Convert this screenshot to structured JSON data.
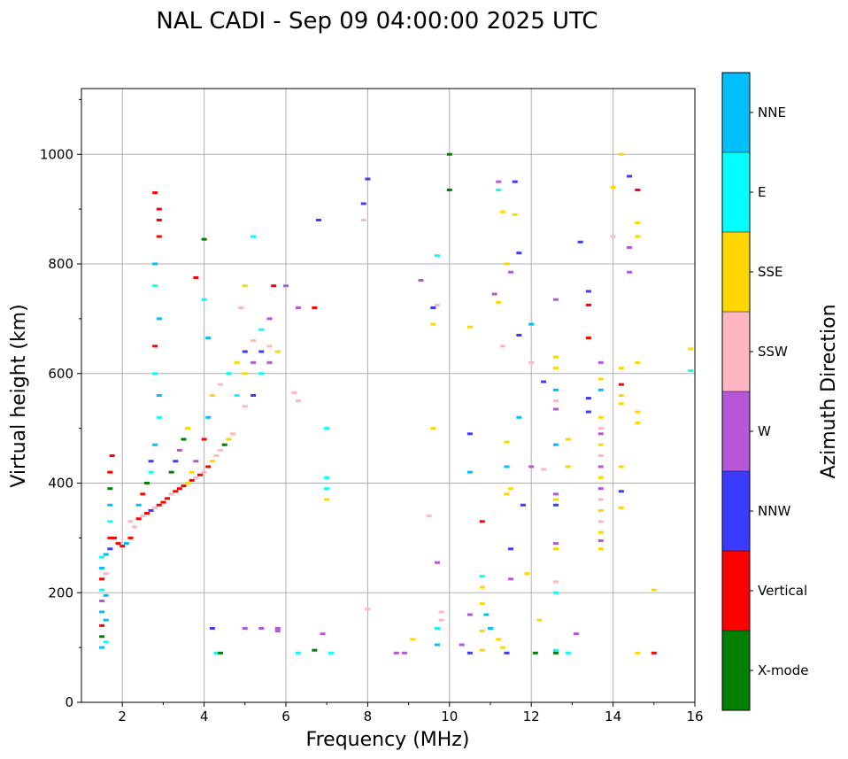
{
  "chart_data": {
    "type": "scatter",
    "title": "NAL CADI - Sep 09 04:00:00 2025 UTC",
    "xlabel": "Frequency (MHz)",
    "ylabel": "Virtual height (km)",
    "xlim": [
      1,
      16
    ],
    "ylim": [
      0,
      1120
    ],
    "xticks": [
      2,
      4,
      6,
      8,
      10,
      12,
      14,
      16
    ],
    "yticks": [
      0,
      200,
      400,
      600,
      800,
      1000
    ],
    "grid": true,
    "colorbar": {
      "label": "Azimuth Direction",
      "categories": [
        {
          "name": "X-mode",
          "color": "#008000"
        },
        {
          "name": "Vertical",
          "color": "#ff0000"
        },
        {
          "name": "NNW",
          "color": "#3b3bff"
        },
        {
          "name": "W",
          "color": "#b557d6"
        },
        {
          "name": "SSW",
          "color": "#ffb6c1"
        },
        {
          "name": "SSE",
          "color": "#ffd700"
        },
        {
          "name": "E",
          "color": "#00ffff"
        },
        {
          "name": "NNE",
          "color": "#00bfff"
        }
      ]
    },
    "echoes": [
      [
        1.5,
        100,
        "NNE"
      ],
      [
        1.5,
        120,
        "X-mode"
      ],
      [
        1.5,
        140,
        "Vertical"
      ],
      [
        1.5,
        165,
        "NNE"
      ],
      [
        1.5,
        185,
        "W"
      ],
      [
        1.5,
        205,
        "E"
      ],
      [
        1.5,
        225,
        "Vertical"
      ],
      [
        1.5,
        245,
        "NNE"
      ],
      [
        1.5,
        265,
        "E"
      ],
      [
        1.6,
        110,
        "E"
      ],
      [
        1.6,
        150,
        "NNE"
      ],
      [
        1.6,
        195,
        "NNE"
      ],
      [
        1.6,
        235,
        "SSW"
      ],
      [
        1.6,
        270,
        "NNE"
      ],
      [
        1.7,
        280,
        "NNW"
      ],
      [
        1.7,
        300,
        "Vertical"
      ],
      [
        1.7,
        330,
        "E"
      ],
      [
        1.7,
        360,
        "NNE"
      ],
      [
        1.7,
        390,
        "X-mode"
      ],
      [
        1.7,
        420,
        "Vertical"
      ],
      [
        1.75,
        450,
        "Vertical"
      ],
      [
        1.8,
        300,
        "Vertical"
      ],
      [
        1.9,
        290,
        "Vertical"
      ],
      [
        2.0,
        285,
        "Vertical"
      ],
      [
        2.1,
        290,
        "NNE"
      ],
      [
        2.2,
        300,
        "Vertical"
      ],
      [
        2.3,
        320,
        "SSW"
      ],
      [
        2.4,
        335,
        "Vertical"
      ],
      [
        2.5,
        340,
        "SSW"
      ],
      [
        2.6,
        345,
        "Vertical"
      ],
      [
        2.7,
        350,
        "NNW"
      ],
      [
        2.8,
        355,
        "SSW"
      ],
      [
        2.9,
        360,
        "Vertical"
      ],
      [
        3.0,
        365,
        "Vertical"
      ],
      [
        3.1,
        372,
        "Vertical"
      ],
      [
        3.2,
        380,
        "SSW"
      ],
      [
        3.3,
        385,
        "Vertical"
      ],
      [
        3.4,
        390,
        "Vertical"
      ],
      [
        3.5,
        395,
        "Vertical"
      ],
      [
        3.6,
        400,
        "SSE"
      ],
      [
        3.7,
        405,
        "Vertical"
      ],
      [
        3.8,
        410,
        "SSW"
      ],
      [
        3.9,
        415,
        "Vertical"
      ],
      [
        4.0,
        420,
        "SSW"
      ],
      [
        4.1,
        430,
        "Vertical"
      ],
      [
        4.2,
        440,
        "SSE"
      ],
      [
        4.3,
        450,
        "SSW"
      ],
      [
        4.4,
        460,
        "SSW"
      ],
      [
        4.5,
        470,
        "X-mode"
      ],
      [
        4.6,
        480,
        "SSE"
      ],
      [
        4.7,
        490,
        "SSW"
      ],
      [
        2.2,
        330,
        "SSW"
      ],
      [
        2.4,
        360,
        "NNE"
      ],
      [
        2.5,
        380,
        "Vertical"
      ],
      [
        2.6,
        400,
        "X-mode"
      ],
      [
        2.7,
        420,
        "E"
      ],
      [
        2.7,
        440,
        "NNW"
      ],
      [
        2.8,
        470,
        "NNE"
      ],
      [
        2.9,
        520,
        "E"
      ],
      [
        2.9,
        560,
        "NNE"
      ],
      [
        2.8,
        600,
        "E"
      ],
      [
        2.8,
        650,
        "Vertical"
      ],
      [
        2.9,
        700,
        "NNE"
      ],
      [
        2.8,
        760,
        "E"
      ],
      [
        2.8,
        800,
        "NNE"
      ],
      [
        2.9,
        850,
        "Vertical"
      ],
      [
        2.9,
        880,
        "Vertical"
      ],
      [
        2.9,
        900,
        "Vertical"
      ],
      [
        2.8,
        930,
        "Vertical"
      ],
      [
        3.2,
        420,
        "X-mode"
      ],
      [
        3.3,
        440,
        "NNW"
      ],
      [
        3.4,
        460,
        "W"
      ],
      [
        3.5,
        480,
        "X-mode"
      ],
      [
        3.6,
        500,
        "SSE"
      ],
      [
        3.7,
        420,
        "SSE"
      ],
      [
        3.8,
        440,
        "W"
      ],
      [
        4.0,
        480,
        "Vertical"
      ],
      [
        4.1,
        520,
        "NNE"
      ],
      [
        4.2,
        560,
        "SSE"
      ],
      [
        4.4,
        580,
        "SSW"
      ],
      [
        4.6,
        600,
        "E"
      ],
      [
        4.8,
        620,
        "SSE"
      ],
      [
        5.0,
        640,
        "NNW"
      ],
      [
        5.2,
        660,
        "SSW"
      ],
      [
        5.4,
        680,
        "E"
      ],
      [
        5.6,
        700,
        "W"
      ],
      [
        4.8,
        560,
        "E"
      ],
      [
        5.0,
        540,
        "SSW"
      ],
      [
        5.2,
        560,
        "NNW"
      ],
      [
        5.4,
        600,
        "E"
      ],
      [
        5.6,
        620,
        "W"
      ],
      [
        5.8,
        640,
        "SSE"
      ],
      [
        5.0,
        600,
        "SSE"
      ],
      [
        5.2,
        620,
        "W"
      ],
      [
        5.4,
        640,
        "NNW"
      ],
      [
        5.6,
        650,
        "SSW"
      ],
      [
        4.0,
        845,
        "X-mode"
      ],
      [
        3.8,
        775,
        "Vertical"
      ],
      [
        4.0,
        735,
        "E"
      ],
      [
        4.1,
        665,
        "NNE"
      ],
      [
        4.9,
        720,
        "SSW"
      ],
      [
        5.0,
        760,
        "SSE"
      ],
      [
        5.2,
        850,
        "E"
      ],
      [
        5.7,
        760,
        "Vertical"
      ],
      [
        6.0,
        760,
        "W"
      ],
      [
        6.3,
        720,
        "W"
      ],
      [
        6.7,
        720,
        "Vertical"
      ],
      [
        6.8,
        880,
        "NNW"
      ],
      [
        6.2,
        565,
        "SSW"
      ],
      [
        6.3,
        550,
        "SSW"
      ],
      [
        7.0,
        500,
        "E"
      ],
      [
        7.0,
        410,
        "E"
      ],
      [
        7.0,
        390,
        "E"
      ],
      [
        7.0,
        370,
        "SSE"
      ],
      [
        4.2,
        135,
        "NNW"
      ],
      [
        4.3,
        90,
        "E"
      ],
      [
        4.4,
        90,
        "X-mode"
      ],
      [
        5.0,
        135,
        "W"
      ],
      [
        5.4,
        135,
        "W"
      ],
      [
        5.8,
        135,
        "W"
      ],
      [
        5.8,
        130,
        "W"
      ],
      [
        6.3,
        90,
        "E"
      ],
      [
        6.7,
        95,
        "X-mode"
      ],
      [
        6.9,
        125,
        "W"
      ],
      [
        7.1,
        90,
        "E"
      ],
      [
        8.0,
        955,
        "NNW"
      ],
      [
        7.9,
        910,
        "NNW"
      ],
      [
        7.9,
        880,
        "SSW"
      ],
      [
        8.0,
        170,
        "SSW"
      ],
      [
        8.7,
        90,
        "W"
      ],
      [
        8.9,
        90,
        "W"
      ],
      [
        9.1,
        115,
        "SSE"
      ],
      [
        9.3,
        770,
        "W"
      ],
      [
        9.6,
        690,
        "SSE"
      ],
      [
        9.6,
        720,
        "NNW"
      ],
      [
        9.7,
        725,
        "SSW"
      ],
      [
        9.7,
        815,
        "SSE"
      ],
      [
        9.7,
        815,
        "E"
      ],
      [
        9.6,
        500,
        "SSE"
      ],
      [
        9.5,
        340,
        "SSW"
      ],
      [
        9.7,
        255,
        "W"
      ],
      [
        9.8,
        165,
        "SSW"
      ],
      [
        9.7,
        135,
        "E"
      ],
      [
        9.7,
        105,
        "NNE"
      ],
      [
        9.8,
        150,
        "SSW"
      ],
      [
        10.0,
        1000,
        "X-mode"
      ],
      [
        10.0,
        935,
        "X-mode"
      ],
      [
        10.3,
        105,
        "W"
      ],
      [
        10.5,
        90,
        "NNW"
      ],
      [
        10.5,
        160,
        "W"
      ],
      [
        10.5,
        490,
        "NNW"
      ],
      [
        10.5,
        420,
        "NNE"
      ],
      [
        10.5,
        685,
        "SSE"
      ],
      [
        10.8,
        330,
        "Vertical"
      ],
      [
        10.8,
        230,
        "E"
      ],
      [
        10.8,
        210,
        "SSE"
      ],
      [
        10.8,
        180,
        "SSE"
      ],
      [
        10.8,
        130,
        "SSE"
      ],
      [
        10.8,
        95,
        "SSE"
      ],
      [
        10.9,
        160,
        "NNE"
      ],
      [
        11.0,
        135,
        "NNE"
      ],
      [
        11.2,
        115,
        "SSE"
      ],
      [
        11.3,
        100,
        "SSE"
      ],
      [
        11.4,
        90,
        "NNW"
      ],
      [
        11.2,
        950,
        "W"
      ],
      [
        11.2,
        935,
        "E"
      ],
      [
        11.3,
        895,
        "SSE"
      ],
      [
        11.3,
        650,
        "SSW"
      ],
      [
        11.4,
        800,
        "SSE"
      ],
      [
        11.5,
        785,
        "W"
      ],
      [
        11.6,
        890,
        "SSE"
      ],
      [
        11.6,
        950,
        "NNW"
      ],
      [
        11.1,
        745,
        "W"
      ],
      [
        11.2,
        730,
        "SSE"
      ],
      [
        11.4,
        475,
        "SSE"
      ],
      [
        11.4,
        430,
        "NNE"
      ],
      [
        11.5,
        390,
        "SSE"
      ],
      [
        11.4,
        380,
        "SSE"
      ],
      [
        11.7,
        520,
        "NNE"
      ],
      [
        11.8,
        360,
        "NNW"
      ],
      [
        11.9,
        235,
        "SSE"
      ],
      [
        12.0,
        430,
        "W"
      ],
      [
        12.0,
        620,
        "SSW"
      ],
      [
        12.0,
        690,
        "NNE"
      ],
      [
        11.7,
        670,
        "NNW"
      ],
      [
        11.7,
        820,
        "NNW"
      ],
      [
        11.5,
        280,
        "NNW"
      ],
      [
        11.5,
        225,
        "W"
      ],
      [
        12.1,
        90,
        "X-mode"
      ],
      [
        12.2,
        150,
        "SSE"
      ],
      [
        12.3,
        585,
        "NNW"
      ],
      [
        12.3,
        425,
        "SSW"
      ],
      [
        12.6,
        630,
        "SSE"
      ],
      [
        12.6,
        610,
        "SSE"
      ],
      [
        12.6,
        570,
        "NNE"
      ],
      [
        12.6,
        550,
        "SSW"
      ],
      [
        12.6,
        535,
        "W"
      ],
      [
        12.6,
        470,
        "NNE"
      ],
      [
        12.6,
        380,
        "W"
      ],
      [
        12.6,
        370,
        "SSE"
      ],
      [
        12.6,
        360,
        "NNW"
      ],
      [
        12.6,
        290,
        "W"
      ],
      [
        12.6,
        280,
        "SSE"
      ],
      [
        12.6,
        220,
        "SSW"
      ],
      [
        12.6,
        200,
        "E"
      ],
      [
        12.6,
        95,
        "E"
      ],
      [
        12.6,
        90,
        "X-mode"
      ],
      [
        12.6,
        735,
        "W"
      ],
      [
        12.9,
        480,
        "SSE"
      ],
      [
        12.9,
        430,
        "SSE"
      ],
      [
        12.9,
        90,
        "E"
      ],
      [
        13.1,
        125,
        "W"
      ],
      [
        13.2,
        840,
        "NNW"
      ],
      [
        13.4,
        665,
        "Vertical"
      ],
      [
        13.4,
        555,
        "NNW"
      ],
      [
        13.4,
        530,
        "NNW"
      ],
      [
        13.4,
        750,
        "NNW"
      ],
      [
        13.4,
        725,
        "Vertical"
      ],
      [
        13.7,
        490,
        "W"
      ],
      [
        13.7,
        470,
        "SSE"
      ],
      [
        13.7,
        450,
        "SSW"
      ],
      [
        13.7,
        430,
        "W"
      ],
      [
        13.7,
        410,
        "SSE"
      ],
      [
        13.7,
        390,
        "W"
      ],
      [
        13.7,
        370,
        "SSW"
      ],
      [
        13.7,
        350,
        "SSE"
      ],
      [
        13.7,
        330,
        "SSW"
      ],
      [
        13.7,
        310,
        "SSE"
      ],
      [
        13.7,
        295,
        "W"
      ],
      [
        13.7,
        280,
        "SSE"
      ],
      [
        13.7,
        570,
        "NNE"
      ],
      [
        13.7,
        590,
        "SSE"
      ],
      [
        13.7,
        620,
        "W"
      ],
      [
        13.7,
        520,
        "SSE"
      ],
      [
        13.7,
        500,
        "SSW"
      ],
      [
        14.0,
        940,
        "SSE"
      ],
      [
        14.0,
        850,
        "SSW"
      ],
      [
        14.2,
        1000,
        "SSE"
      ],
      [
        14.2,
        610,
        "SSE"
      ],
      [
        14.2,
        580,
        "Vertical"
      ],
      [
        14.2,
        560,
        "SSE"
      ],
      [
        14.2,
        545,
        "SSE"
      ],
      [
        14.2,
        430,
        "SSE"
      ],
      [
        14.2,
        385,
        "NNW"
      ],
      [
        14.2,
        355,
        "SSE"
      ],
      [
        14.4,
        960,
        "NNW"
      ],
      [
        14.4,
        830,
        "W"
      ],
      [
        14.4,
        785,
        "W"
      ],
      [
        14.6,
        935,
        "Vertical"
      ],
      [
        14.6,
        875,
        "SSE"
      ],
      [
        14.6,
        850,
        "SSE"
      ],
      [
        14.6,
        620,
        "SSE"
      ],
      [
        14.6,
        530,
        "SSE"
      ],
      [
        14.6,
        510,
        "SSE"
      ],
      [
        14.6,
        90,
        "SSE"
      ],
      [
        15.0,
        90,
        "Vertical"
      ],
      [
        15.0,
        205,
        "SSE"
      ],
      [
        15.9,
        645,
        "SSE"
      ],
      [
        15.9,
        605,
        "E"
      ]
    ]
  }
}
